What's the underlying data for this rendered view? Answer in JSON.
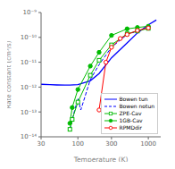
{
  "chart_data": {
    "type": "line",
    "xlabel": "Temperature (K)",
    "ylabel": "Rate constant (cm³/s)",
    "log": true,
    "grid": false,
    "legend": "lower right",
    "xlim": [
      30,
      1500
    ],
    "xticks": [
      30,
      100,
      300,
      1000
    ],
    "ylim": [
      1e-14,
      1e-09
    ],
    "yticks": [
      {
        "value": 1e-14,
        "label": "10⁻¹⁴"
      },
      {
        "value": 1e-13,
        "label": "10⁻¹³"
      },
      {
        "value": 1e-12,
        "label": "10⁻¹²"
      },
      {
        "value": 1e-11,
        "label": "10⁻¹¹"
      },
      {
        "value": 1e-10,
        "label": "10⁻¹⁰"
      },
      {
        "value": 1e-09,
        "label": "10⁻⁹"
      }
    ],
    "series": [
      {
        "name": "Bowen tun",
        "color": "#0000ff",
        "marker": "none",
        "line_style": "solid",
        "x": [
          30,
          40,
          50,
          65,
          77,
          100,
          150,
          200,
          300,
          500,
          700,
          1000,
          1300
        ],
        "values": [
          1.3e-12,
          1.25e-12,
          1.22e-12,
          1.2e-12,
          1.2e-12,
          1.25e-12,
          1.8e-12,
          3.5e-12,
          1.5e-11,
          6e-11,
          1.5e-10,
          3.2e-10,
          5e-10
        ]
      },
      {
        "name": "Bowen notun",
        "color": "#0000ff",
        "marker": "none",
        "line_style": "dashed",
        "x": [
          77,
          83,
          100,
          110,
          150,
          200,
          300,
          500,
          700,
          1000
        ],
        "values": [
          2e-14,
          5e-14,
          3.5e-13,
          1.2e-13,
          2e-12,
          8e-12,
          4e-11,
          1.3e-10,
          1.8e-10,
          2.5e-10
        ]
      },
      {
        "name": "ZPE-Cav",
        "color": "#00bb00",
        "marker": "square_open",
        "line_style": "solid",
        "x": [
          77,
          83,
          100,
          150,
          200,
          300,
          500,
          700,
          1000
        ],
        "values": [
          2e-14,
          5e-14,
          2.5e-13,
          3e-12,
          1.2e-11,
          5e-11,
          1.4e-10,
          1.8e-10,
          2.3e-10
        ]
      },
      {
        "name": "1GB-Cav",
        "color": "#00bb00",
        "marker": "circle",
        "line_style": "solid",
        "x": [
          77,
          83,
          100,
          150,
          200,
          300,
          500,
          700,
          1000
        ],
        "values": [
          3.5e-14,
          1.5e-13,
          8e-13,
          7e-12,
          2.5e-11,
          1.2e-10,
          2.2e-10,
          2.5e-10,
          2.8e-10
        ]
      },
      {
        "name": "RPMDdir",
        "color": "#ff0000",
        "marker": "circle_open",
        "line_style": "solid",
        "x": [
          200,
          250,
          300,
          400,
          500,
          700,
          1000
        ],
        "values": [
          1.2e-13,
          1e-11,
          4e-11,
          9e-11,
          1.3e-10,
          1.9e-10,
          2.4e-10
        ]
      }
    ]
  }
}
